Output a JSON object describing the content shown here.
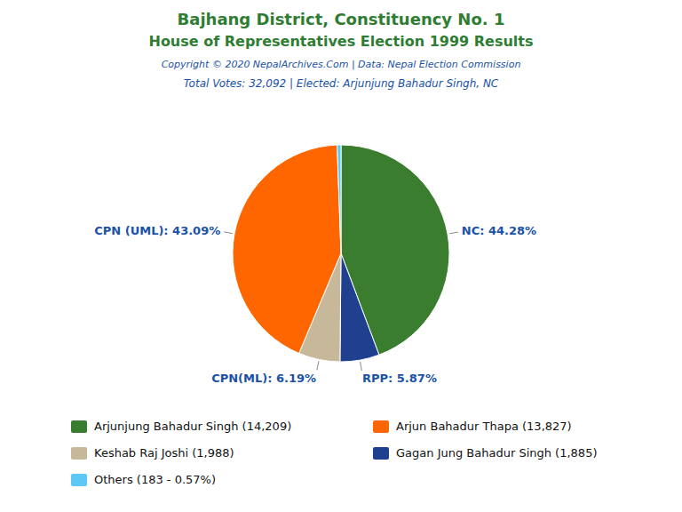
{
  "chart_data": {
    "type": "pie",
    "title": "Bajhang District, Constituency No. 1",
    "subtitle": "House of Representatives Election 1999 Results",
    "annotations": [
      "Copyright © 2020 NepalArchives.Com | Data: Nepal Election Commission",
      "Total Votes: 32,092 | Elected: Arjunjung Bahadur Singh, NC"
    ],
    "categories": [
      "NC",
      "RPP",
      "CPN(ML)",
      "CPN (UML)",
      "Others"
    ],
    "values": [
      44.28,
      5.87,
      6.19,
      43.09,
      0.57
    ],
    "colors": [
      "#3a7d2e",
      "#1f3f8f",
      "#c8b89a",
      "#ff6600",
      "#5bc8f5"
    ],
    "data_labels": true,
    "value_labels": [
      "NC: 44.28%",
      "RPP: 5.87%",
      "CPN(ML): 6.19%",
      "CPN (UML): 43.09%",
      null
    ],
    "legend": "bottom",
    "legend_entries": [
      {
        "name": "Arjunjung Bahadur Singh (14,209)",
        "color": "#3a7d2e"
      },
      {
        "name": "Arjun Bahadur Thapa (13,827)",
        "color": "#ff6600"
      },
      {
        "name": "Keshab Raj Joshi (1,988)",
        "color": "#c8b89a"
      },
      {
        "name": "Gagan Jung Bahadur Singh (1,885)",
        "color": "#1f3f8f"
      },
      {
        "name": "Others (183 - 0.57%)",
        "color": "#5bc8f5"
      }
    ]
  }
}
